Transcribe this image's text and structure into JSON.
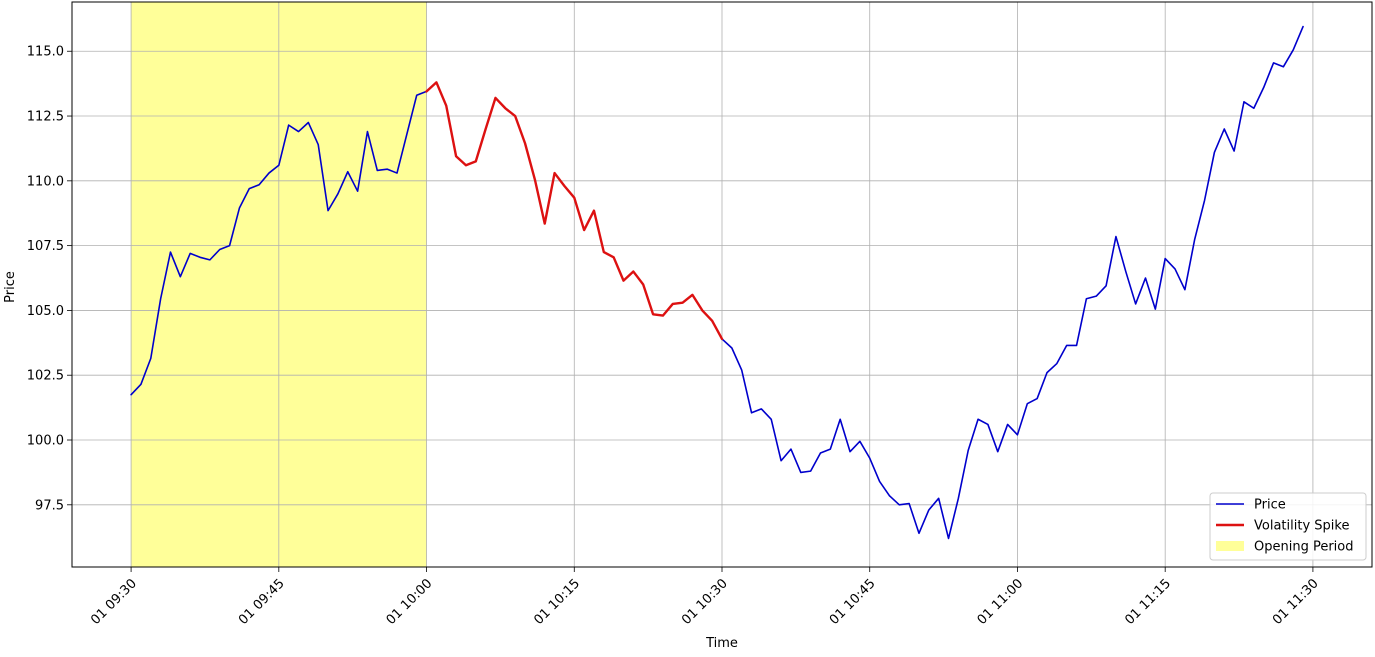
{
  "chart_data": {
    "type": "line",
    "title": "",
    "xlabel": "Time",
    "ylabel": "Price",
    "ylim": [
      95.1,
      116.9
    ],
    "xlim": [
      "09:24",
      "11:36"
    ],
    "grid": true,
    "legend_position": "lower-right",
    "x_ticks": [
      "01 09:30",
      "01 09:45",
      "01 10:00",
      "01 10:15",
      "01 10:30",
      "01 10:45",
      "01 11:00",
      "01 11:15",
      "01 11:30"
    ],
    "y_ticks": [
      "97.5",
      "100.0",
      "102.5",
      "105.0",
      "107.5",
      "110.0",
      "112.5",
      "115.0"
    ],
    "shaded_regions": [
      {
        "name": "Opening Period",
        "start": "09:30",
        "end": "10:00",
        "color": "#ffff99"
      }
    ],
    "series": [
      {
        "name": "Price",
        "color": "#0000cc",
        "x_start": "09:30",
        "x_step_minutes": 1,
        "values": [
          101.75,
          102.15,
          103.15,
          105.45,
          107.25,
          106.3,
          107.2,
          107.05,
          106.95,
          107.35,
          107.5,
          108.95,
          109.7,
          109.85,
          110.3,
          110.6,
          112.15,
          111.9,
          112.25,
          111.4,
          108.85,
          109.5,
          110.35,
          109.6,
          111.9,
          110.4,
          110.45,
          110.3,
          111.8,
          113.3,
          113.45,
          113.8,
          112.9,
          110.95,
          110.6,
          110.75,
          112.0,
          113.2,
          112.8,
          112.5,
          111.45,
          110.05,
          108.35,
          110.3,
          109.8,
          109.35,
          108.1,
          108.85,
          107.25,
          107.05,
          106.15,
          106.5,
          106.0,
          104.85,
          104.8,
          105.25,
          105.3,
          105.6,
          105.0,
          104.6,
          103.9,
          103.55,
          102.7,
          101.05,
          101.2,
          100.8,
          99.2,
          99.65,
          98.75,
          98.8,
          99.5,
          99.65,
          100.8,
          99.55,
          99.95,
          99.3,
          98.4,
          97.85,
          97.5,
          97.55,
          96.4,
          97.3,
          97.75,
          96.2,
          97.75,
          99.6,
          100.8,
          100.6,
          99.55,
          100.6,
          100.2,
          101.4,
          101.6,
          102.6,
          102.95,
          103.65,
          103.65,
          105.45,
          105.55,
          105.95,
          107.85,
          106.5,
          105.25,
          106.25,
          105.05,
          107.0,
          106.6,
          105.8,
          107.75,
          109.25,
          111.1,
          112.0,
          111.15,
          113.05,
          112.8,
          113.6,
          114.55,
          114.4,
          115.05,
          115.95
        ]
      },
      {
        "name": "Volatility Spike",
        "color": "#dd1111",
        "x_start": "10:00",
        "x_step_minutes": 1,
        "values": [
          113.45,
          113.8,
          112.9,
          110.95,
          110.6,
          110.75,
          112.0,
          113.2,
          112.8,
          112.5,
          111.45,
          110.05,
          108.35,
          110.3,
          109.8,
          109.35,
          108.1,
          108.85,
          107.25,
          107.05,
          106.15,
          106.5,
          106.0,
          104.85,
          104.8,
          105.25,
          105.3,
          105.6,
          105.0,
          104.6,
          103.9
        ]
      }
    ],
    "legend": [
      {
        "label": "Price",
        "kind": "line",
        "color": "#0000cc"
      },
      {
        "label": "Volatility Spike",
        "kind": "line",
        "color": "#dd1111"
      },
      {
        "label": "Opening Period",
        "kind": "patch",
        "color": "#ffff99"
      }
    ]
  }
}
